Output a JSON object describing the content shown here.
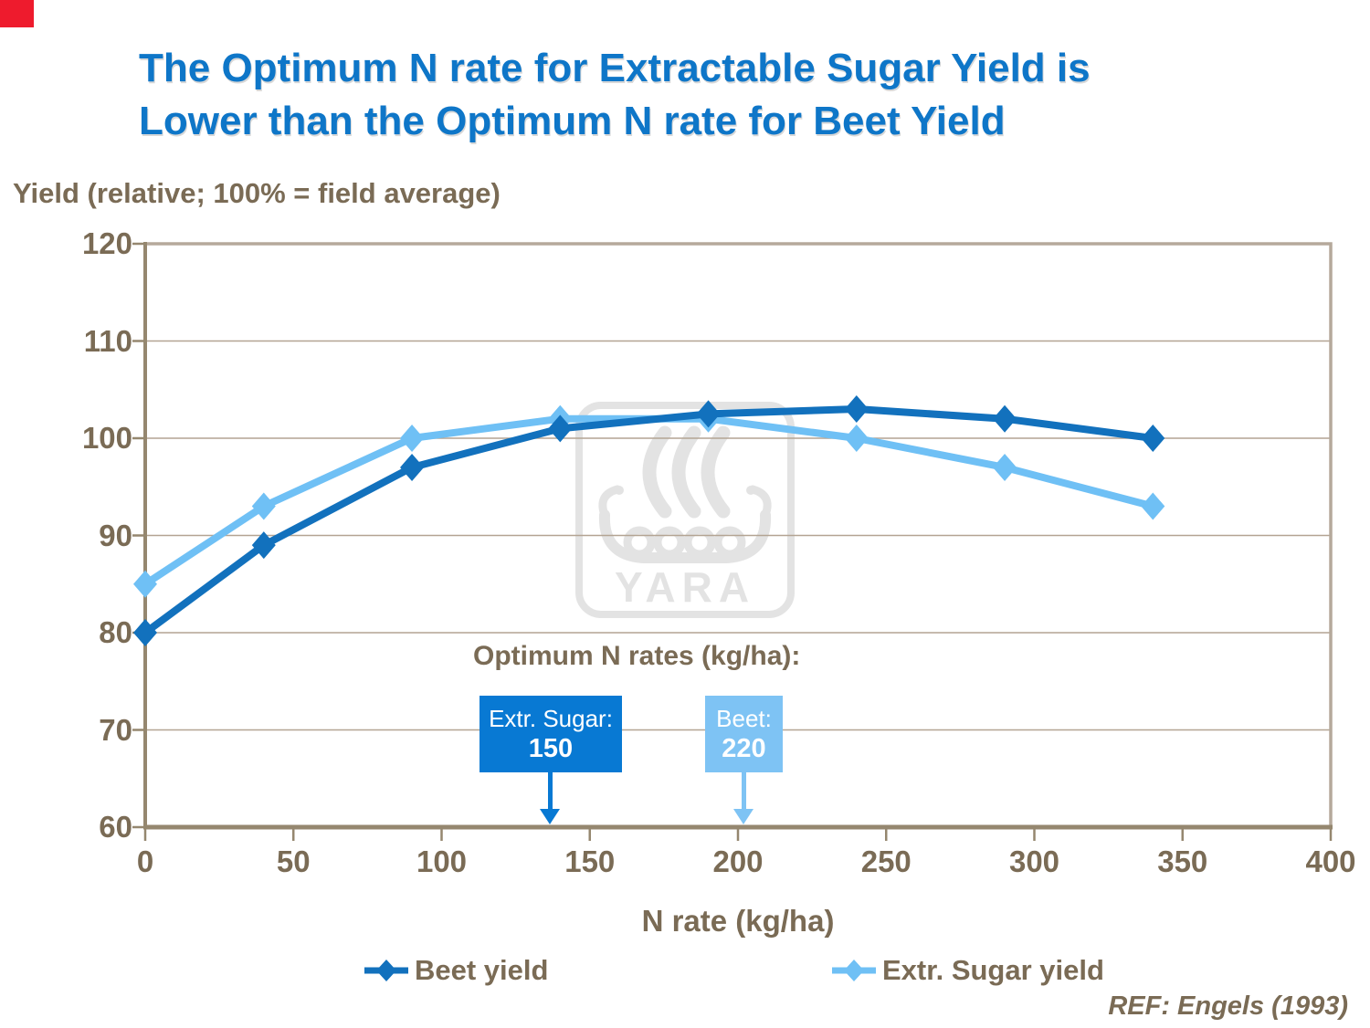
{
  "slide": {
    "title_line1": "The Optimum N rate for Extractable Sugar Yield is",
    "title_line2": "Lower than the Optimum N rate for Beet Yield",
    "reference": "REF: Engels (1993)",
    "watermark_text": "YARA"
  },
  "colors": {
    "title_blue": "#0E76C8",
    "beet_blue": "#1271BD",
    "sugar_blue": "#6FC0F5",
    "box_dark_blue": "#0879D3",
    "box_light_blue": "#7EC3F4",
    "brown_text": "#7A6B55",
    "gridline": "#B3A493",
    "axis": "#95876F",
    "plot_border": "#B5A99B",
    "watermark_gray": "#E3E3E3",
    "corner_red": "#EE1B2D"
  },
  "chart_data": {
    "type": "line",
    "ylabel": "Yield (relative; 100% = field average)",
    "xlabel": "N rate (kg/ha)",
    "x": [
      0,
      40,
      90,
      140,
      190,
      240,
      290,
      340
    ],
    "series": [
      {
        "name": "Beet yield",
        "color": "#1271BD",
        "values": [
          80,
          89,
          97,
          101,
          102.5,
          103,
          102,
          100
        ]
      },
      {
        "name": "Extr. Sugar yield",
        "color": "#6FC0F5",
        "values": [
          85,
          93,
          100,
          102,
          102,
          100,
          97,
          93
        ]
      }
    ],
    "xlim": [
      0,
      400
    ],
    "xtick_step": 50,
    "ylim": [
      60,
      120
    ],
    "ytick_step": 10,
    "grid": true,
    "legend_position": "bottom",
    "marker": "diamond",
    "annotations": {
      "heading": "Optimum N rates (kg/ha):",
      "boxes": [
        {
          "label": "Extr. Sugar:",
          "value": "150"
        },
        {
          "label": "Beet:",
          "value": "220"
        }
      ]
    }
  }
}
